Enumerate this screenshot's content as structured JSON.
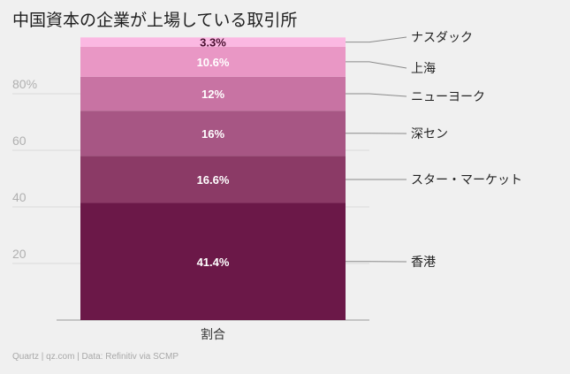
{
  "chart_data": {
    "type": "bar",
    "stacked": true,
    "title": "中国資本の企業が上場している取引所",
    "categories": [
      "割合"
    ],
    "series": [
      {
        "name": "香港",
        "values": [
          41.4
        ],
        "label": "41.4%",
        "color": "#6b1848"
      },
      {
        "name": "スター・マーケット",
        "values": [
          16.6
        ],
        "label": "16.6%",
        "color": "#8b3a66"
      },
      {
        "name": "深セン",
        "values": [
          16
        ],
        "label": "16%",
        "color": "#a75684"
      },
      {
        "name": "ニューヨーク",
        "values": [
          12
        ],
        "label": "12%",
        "color": "#c873a3"
      },
      {
        "name": "上海",
        "values": [
          10.6
        ],
        "label": "10.6%",
        "color": "#e997c5"
      },
      {
        "name": "ナスダック",
        "values": [
          3.3
        ],
        "label": "3.3%",
        "color": "#fbb8e2"
      }
    ],
    "yticks": [
      {
        "value": 20,
        "label": "20"
      },
      {
        "value": 40,
        "label": "40"
      },
      {
        "value": 60,
        "label": "60"
      },
      {
        "value": 80,
        "label": "80%"
      }
    ],
    "ylim": [
      0,
      100
    ],
    "grid": true,
    "xlabel": "",
    "ylabel": ""
  },
  "footer": "Quartz | qz.com | Data: Refinitiv via SCMP"
}
